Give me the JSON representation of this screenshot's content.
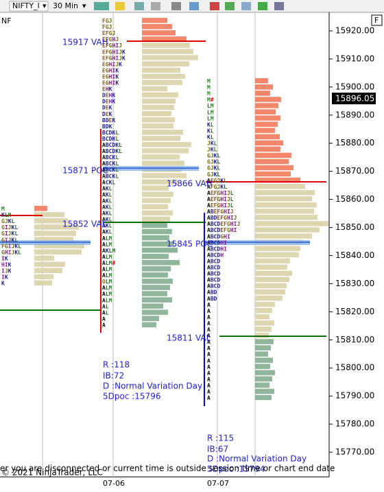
{
  "toolbar": {
    "instrument": "NIFTY_I",
    "interval": "30 Min"
  },
  "chart": {
    "instrument_label": "NF",
    "panel_label": "F",
    "price_axis": [
      "15920.00",
      "15910.00",
      "15900.00",
      "15890.00",
      "15880.00",
      "15870.00",
      "15860.00",
      "15850.00",
      "15840.00",
      "15830.00",
      "15820.00",
      "15810.00",
      "15800.00",
      "15790.00",
      "15780.00",
      "15770.00"
    ],
    "current_price": "15896.05",
    "dates": [
      "07-06",
      "07-07"
    ],
    "profiles": [
      {
        "letters": [
          "M",
          "KLM",
          "GJKL",
          "GIJKL",
          "GIJKL",
          "GIJKL",
          "FGIJKL",
          "GHIJKL",
          "IK",
          "HIK",
          "IJK",
          "IK",
          "K"
        ]
      },
      {
        "letters": [
          "FGJ",
          "FGJ",
          "EFGJ",
          "EFGHJ",
          "EFGHIJ",
          "EFGHIJK",
          "EFGHIJK",
          "EGHIJK",
          "EGHIK",
          "EGHIK",
          "EGHIK",
          "EHK",
          "DEHK",
          "DEHK",
          "DEK",
          "DEK",
          "BDEK",
          "BDK",
          "BCDKL",
          "BCDKL",
          "ABCDKL",
          "ABCDKL",
          "ABCKL",
          "ABCKL",
          "ABCKL",
          "ABCKL",
          "ACKL",
          "AKL",
          "AKL",
          "AKL",
          "AKL",
          "AKL",
          "AKL",
          "AKL",
          "AKL",
          "ALM",
          "ALM",
          "AKLM",
          "ALM",
          "ALM#",
          "ALM",
          "ALM",
          "OLM",
          "ALM",
          "ALM",
          "ALM",
          "AL",
          "AL",
          "A",
          "A"
        ]
      },
      {
        "letters": [
          "M",
          "M",
          "M",
          "M#",
          "LM",
          "LM",
          "LM",
          "KL",
          "KL",
          "KL",
          "JKL",
          "JKL",
          "GJKL",
          "GJKL",
          "GJKL",
          "GJKL",
          "AFGJKL",
          "AFGJKL",
          "AEFGHIJL",
          "AEFGHIJL",
          "AEFGHIJL",
          "ABEFGHIJ",
          "ABDEFGHIJ",
          "ABCDEFGHIJ",
          "ABCDEFGHI",
          "ABCDGHI",
          "ABCDHI",
          "ABCDHI",
          "ABCDH",
          "ABCD",
          "ABCD",
          "ABCD",
          "ABCD",
          "ABCD",
          "ABD",
          "ABD",
          "A",
          "A",
          "A",
          "A",
          "A",
          "A",
          "A",
          "A",
          "A",
          "A",
          "A",
          "A",
          "A",
          "A",
          "A",
          "A"
        ]
      }
    ],
    "annotations": [
      "15917 VAH",
      "15871 POC",
      "15852 VAL",
      "15866 VAH",
      "15845 POC",
      "15811 VAL"
    ],
    "sessions": [
      {
        "range": "R :118",
        "ib": "IB:72",
        "day_type": "D :Normal Variation Day",
        "poc5": "5Dpoc :15796"
      },
      {
        "range": "R :115",
        "ib": "IB:67",
        "day_type": "D :Normal Variation Day",
        "poc5": "5Dpoc :15794"
      }
    ],
    "status_message": "er you are disconnected or current time is outside session time or chart end date",
    "copyright": "© 2021 NinjaTrader, LLC"
  }
}
